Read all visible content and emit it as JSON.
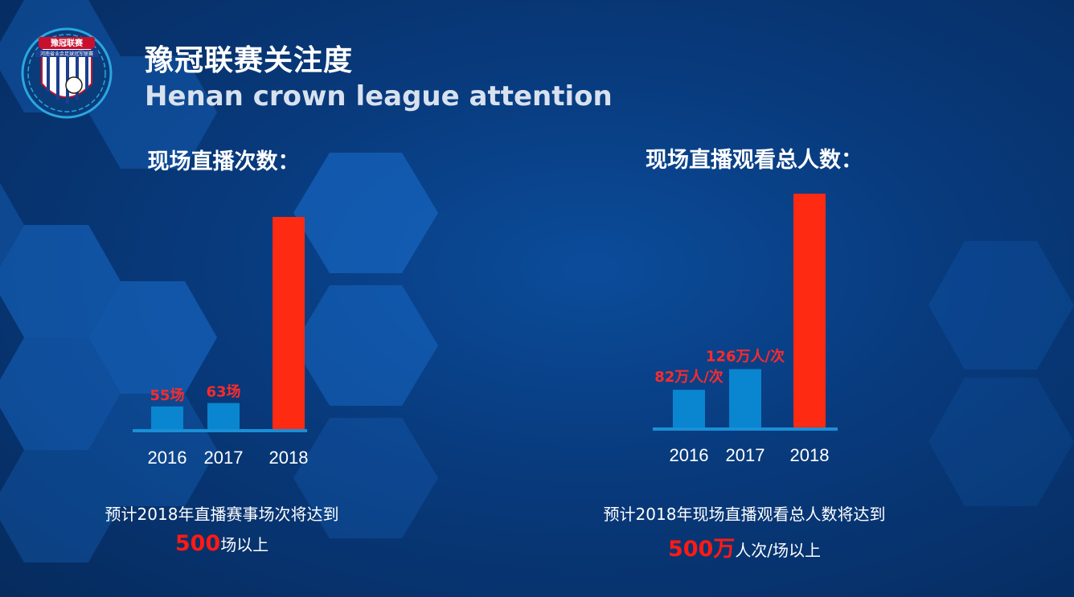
{
  "header": {
    "title_cn": "豫冠联赛关注度",
    "title_en": "Henan crown league attention"
  },
  "logo": {
    "banner_text": "豫冠联赛",
    "ring_text": "河南省业余足球冠军联赛"
  },
  "colors": {
    "bar_normal": "#0a85cf",
    "bar_highlight": "#ff2a12",
    "label_red": "#ff2a2a",
    "axis": "#1a8fd6"
  },
  "chart_data": [
    {
      "type": "bar",
      "title": "现场直播次数：",
      "categories": [
        "2016",
        "2017",
        "2018"
      ],
      "values": [
        55,
        63,
        500
      ],
      "data_labels": [
        "55场",
        "63场",
        ""
      ],
      "highlight_index": 2,
      "unit": "场",
      "xlabel": "",
      "ylabel": ""
    },
    {
      "type": "bar",
      "title": "现场直播观看总人数：",
      "categories": [
        "2016",
        "2017",
        "2018"
      ],
      "values": [
        82,
        126,
        500
      ],
      "data_labels": [
        "82万人/次",
        "126万人/次",
        ""
      ],
      "highlight_index": 2,
      "unit": "万人/次",
      "xlabel": "",
      "ylabel": ""
    }
  ],
  "notes": {
    "left": {
      "line1": "预计2018年直播赛事场次将达到",
      "highlight": "500",
      "rest": "场以上"
    },
    "right": {
      "line1": "预计2018年现场直播观看总人数将达到",
      "highlight": "500万",
      "rest": "人次/场以上"
    }
  }
}
